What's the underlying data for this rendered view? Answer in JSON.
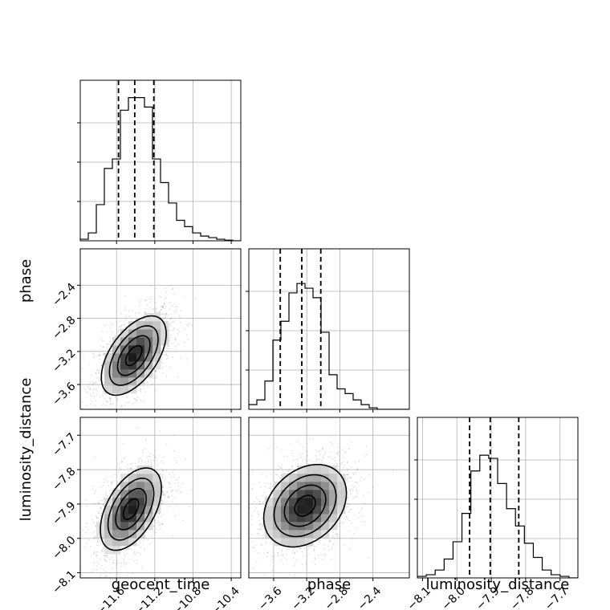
{
  "chart_data": {
    "type": "corner",
    "parameters": [
      "geocent_time",
      "phase",
      "luminosity_distance"
    ],
    "axis_labels": {
      "geocent_time": "geocent_time",
      "phase": "phase",
      "luminosity_distance": "luminosity_distance"
    },
    "ticks": {
      "geocent_time": [
        "−11.6",
        "−11.2",
        "−10.8",
        "−10.4"
      ],
      "phase": [
        "−3.6",
        "−3.2",
        "−2.8",
        "−2.4"
      ],
      "luminosity_distance": [
        "−8.1",
        "−8.0",
        "−7.9",
        "−7.8",
        "−7.7"
      ]
    },
    "ranges": {
      "geocent_time": [
        -11.98,
        -10.3
      ],
      "phase": [
        -3.9,
        -1.96
      ],
      "luminosity_distance": [
        -8.115,
        -7.648
      ]
    },
    "grid": true,
    "quantiles": {
      "geocent_time": [
        -11.58,
        -11.41,
        -11.21
      ],
      "phase": [
        -3.52,
        -3.26,
        -3.03
      ],
      "luminosity_distance": [
        -7.963,
        -7.903,
        -7.82
      ]
    },
    "histograms": {
      "geocent_time": {
        "range": [
          -11.98,
          -10.3
        ],
        "counts": [
          0.01,
          0.05,
          0.23,
          0.46,
          0.52,
          0.83,
          0.91,
          0.91,
          0.85,
          0.52,
          0.37,
          0.24,
          0.13,
          0.09,
          0.05,
          0.03,
          0.02,
          0.01,
          0.004,
          0.0
        ]
      },
      "phase": {
        "range": [
          -3.9,
          -1.96
        ],
        "counts": [
          0.03,
          0.06,
          0.18,
          0.44,
          0.56,
          0.74,
          0.8,
          0.77,
          0.71,
          0.49,
          0.22,
          0.13,
          0.1,
          0.06,
          0.03,
          0.01,
          0.0,
          0.0,
          0.0,
          0.0
        ]
      },
      "luminosity_distance": {
        "range": [
          -8.115,
          -7.648
        ],
        "counts": [
          0.01,
          0.02,
          0.05,
          0.12,
          0.23,
          0.41,
          0.68,
          0.78,
          0.76,
          0.6,
          0.44,
          0.33,
          0.22,
          0.13,
          0.05,
          0.02,
          0.01,
          0.0
        ]
      }
    },
    "joint": [
      {
        "x": "geocent_time",
        "y": "phase",
        "center": [
          -11.42,
          -3.25
        ],
        "sd": [
          0.17,
          0.24
        ],
        "rho": 0.55
      },
      {
        "x": "geocent_time",
        "y": "luminosity_distance",
        "center": [
          -11.45,
          -7.915
        ],
        "sd": [
          0.16,
          0.06
        ],
        "rho": 0.5
      },
      {
        "x": "phase",
        "y": "luminosity_distance",
        "center": [
          -3.22,
          -7.905
        ],
        "sd": [
          0.25,
          0.06
        ],
        "rho": 0.3
      }
    ]
  }
}
